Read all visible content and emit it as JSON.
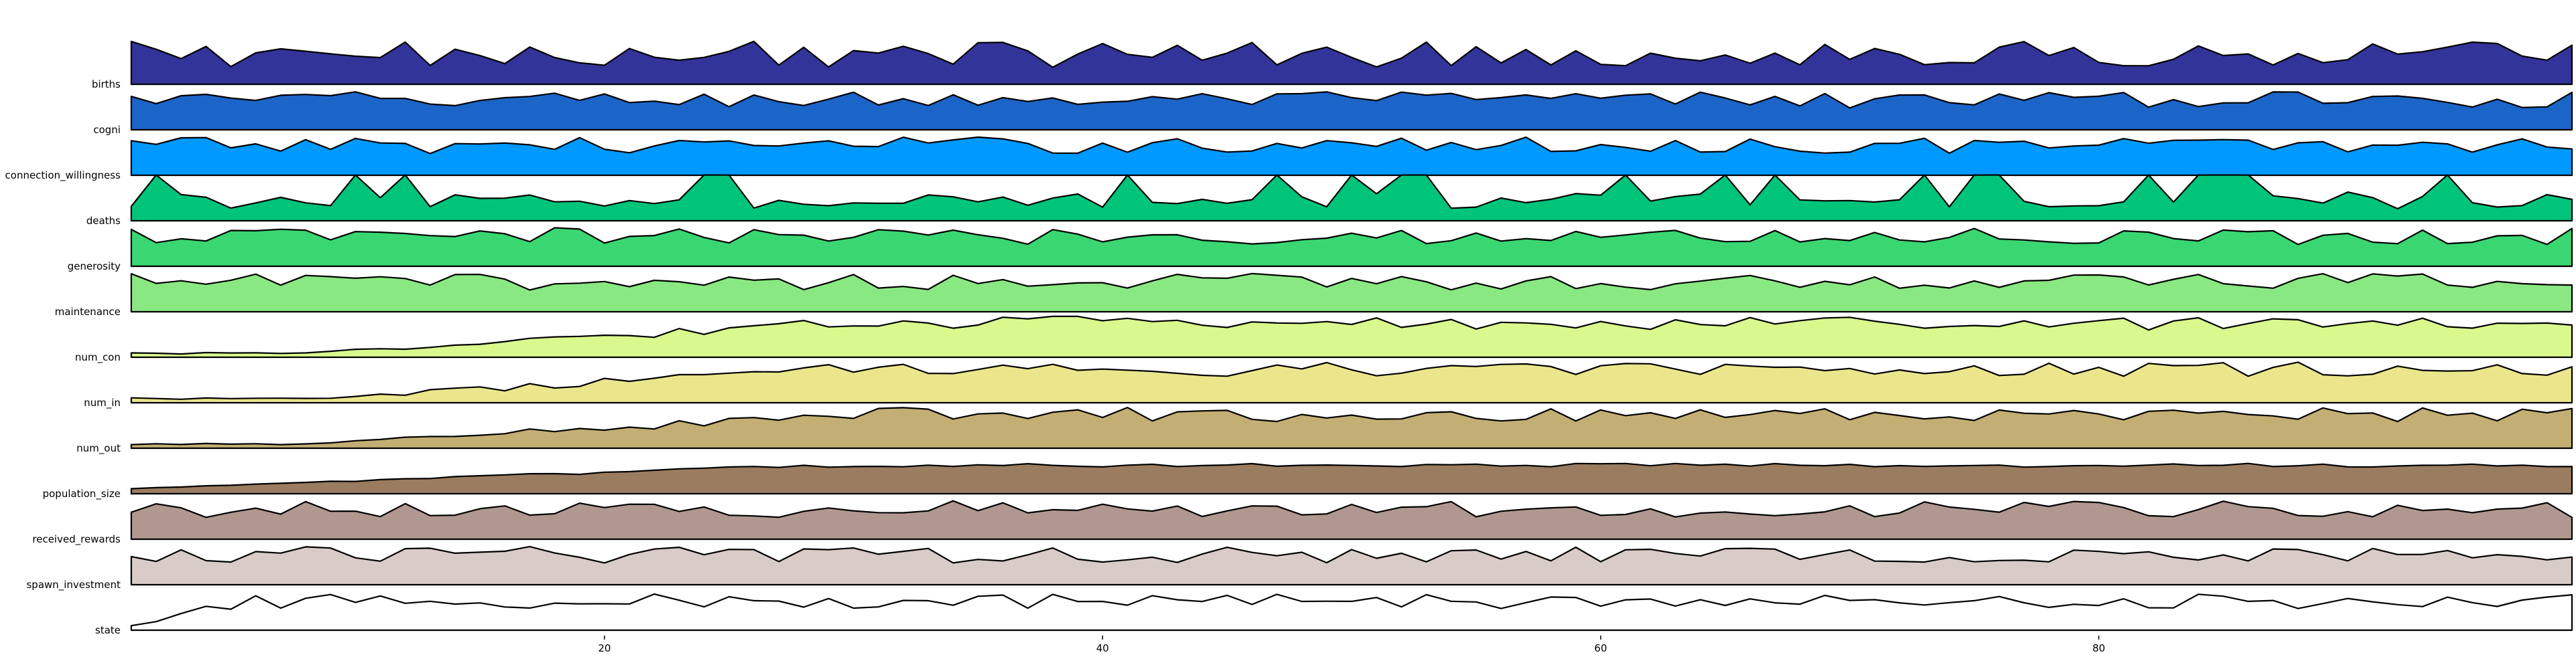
{
  "chart_data": {
    "type": "area",
    "title": "",
    "xlabel": "",
    "ylabel": "",
    "xlim": [
      1,
      99
    ],
    "xticks": [
      20,
      40,
      60,
      80
    ],
    "grid": false,
    "legend": "none",
    "series": [
      {
        "name": "births",
        "color": "#33349a"
      },
      {
        "name": "cogni",
        "color": "#1c65c8"
      },
      {
        "name": "connection_willingness",
        "color": "#0099ff"
      },
      {
        "name": "deaths",
        "color": "#00c47a"
      },
      {
        "name": "generosity",
        "color": "#3ad672"
      },
      {
        "name": "maintenance",
        "color": "#8ae882"
      },
      {
        "name": "num_con",
        "color": "#d9f88e"
      },
      {
        "name": "num_in",
        "color": "#ebe68c"
      },
      {
        "name": "num_out",
        "color": "#c3ae74"
      },
      {
        "name": "population_size",
        "color": "#9a7c60"
      },
      {
        "name": "received_rewards",
        "color": "#b09890"
      },
      {
        "name": "spawn_investment",
        "color": "#d8cbc8"
      },
      {
        "name": "state",
        "color": "#ffffff"
      }
    ]
  }
}
